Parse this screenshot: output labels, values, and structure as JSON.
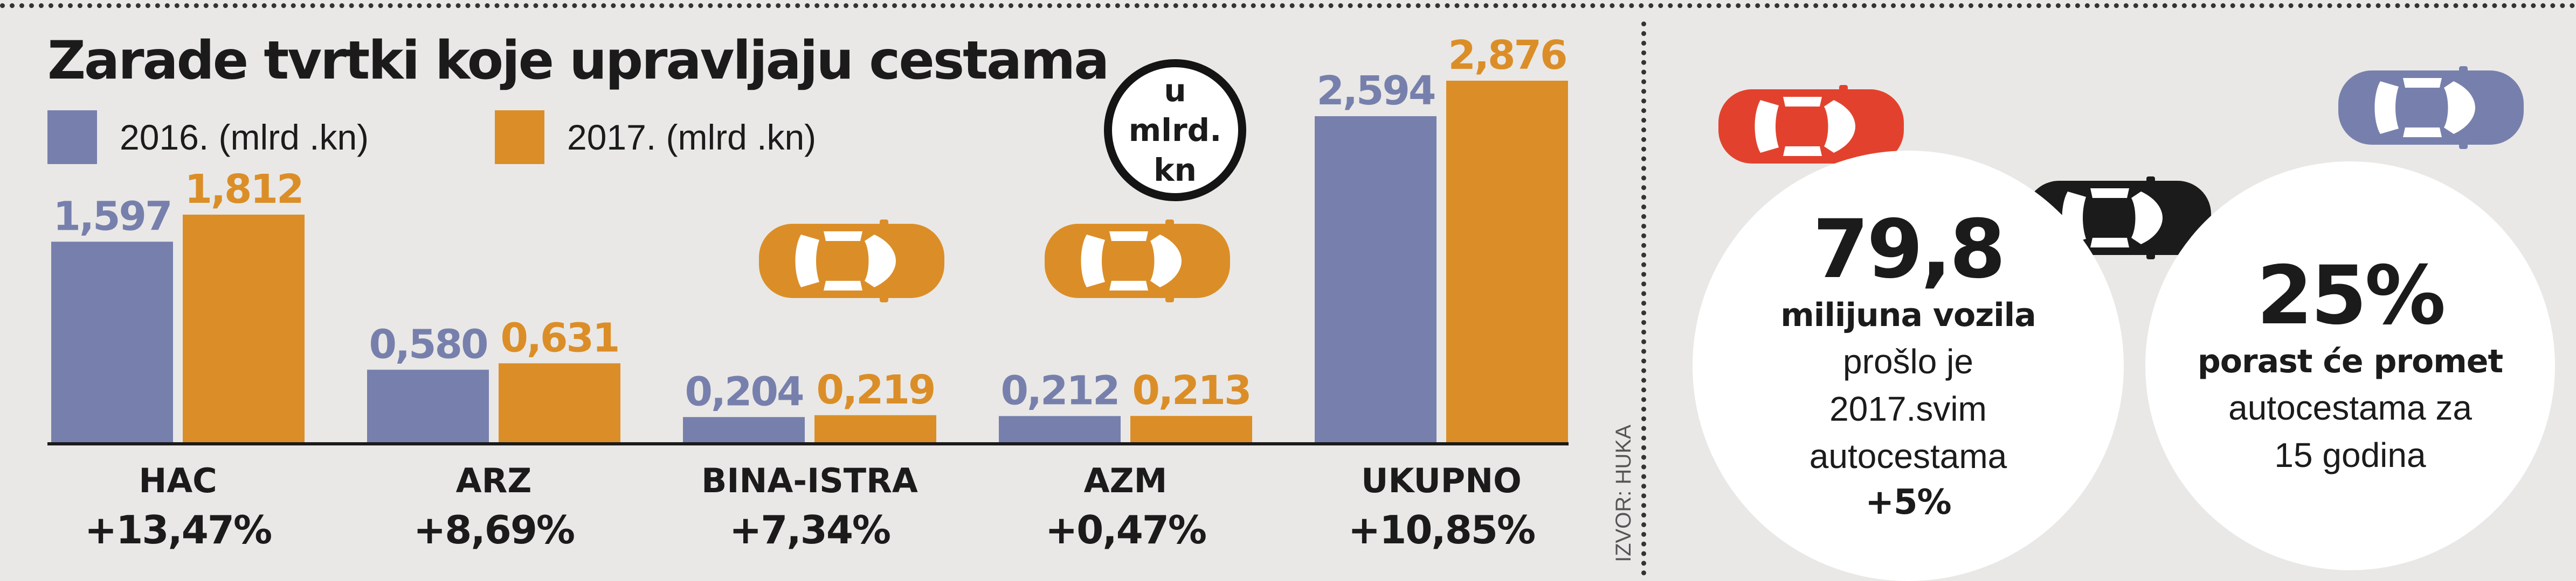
{
  "title": "Zarade tvrtki koje upravljaju cestama",
  "legend": {
    "s2016": "2016. (mlrd .kn)",
    "s2017": "2017. (mlrd .kn)"
  },
  "unit_badge": "u mlrd. kn",
  "source": "IZVOR: HUKA",
  "colors": {
    "s2016": "#7780ac",
    "s2017": "#db8e27",
    "car_red": "#e2422d",
    "car_orange": "#db8e27",
    "car_black": "#1b1b1b",
    "car_blue": "#7780ac"
  },
  "chart_data": {
    "type": "bar",
    "categories": [
      "HAC",
      "ARZ",
      "BINA-ISTRA",
      "AZM",
      "UKUPNO"
    ],
    "series": [
      {
        "name": "2016. (mlrd .kn)",
        "values": [
          1.597,
          0.58,
          0.204,
          0.212,
          2.594
        ]
      },
      {
        "name": "2017. (mlrd .kn)",
        "values": [
          1.812,
          0.631,
          0.219,
          0.213,
          2.876
        ]
      }
    ],
    "value_labels": [
      [
        "1,597",
        "0,580",
        "0,204",
        "0,212",
        "2,594"
      ],
      [
        "1,812",
        "0,631",
        "0,219",
        "0,213",
        "2,876"
      ]
    ],
    "changes": [
      "+13,47%",
      "+8,69%",
      "+7,34%",
      "+0,47%",
      "+10,85%"
    ],
    "ylim": [
      0,
      2.876
    ],
    "grid": false,
    "legend_position": "top-left"
  },
  "stats": {
    "vehicles": {
      "value": "79,8",
      "bold": "milijuna vozila",
      "lines": [
        "prošlo je",
        "2017.svim",
        "autocestama"
      ],
      "change": "+5%"
    },
    "growth": {
      "value": "25%",
      "bold": "porast će promet",
      "lines": [
        "autocestama za",
        "15 godina"
      ]
    }
  }
}
